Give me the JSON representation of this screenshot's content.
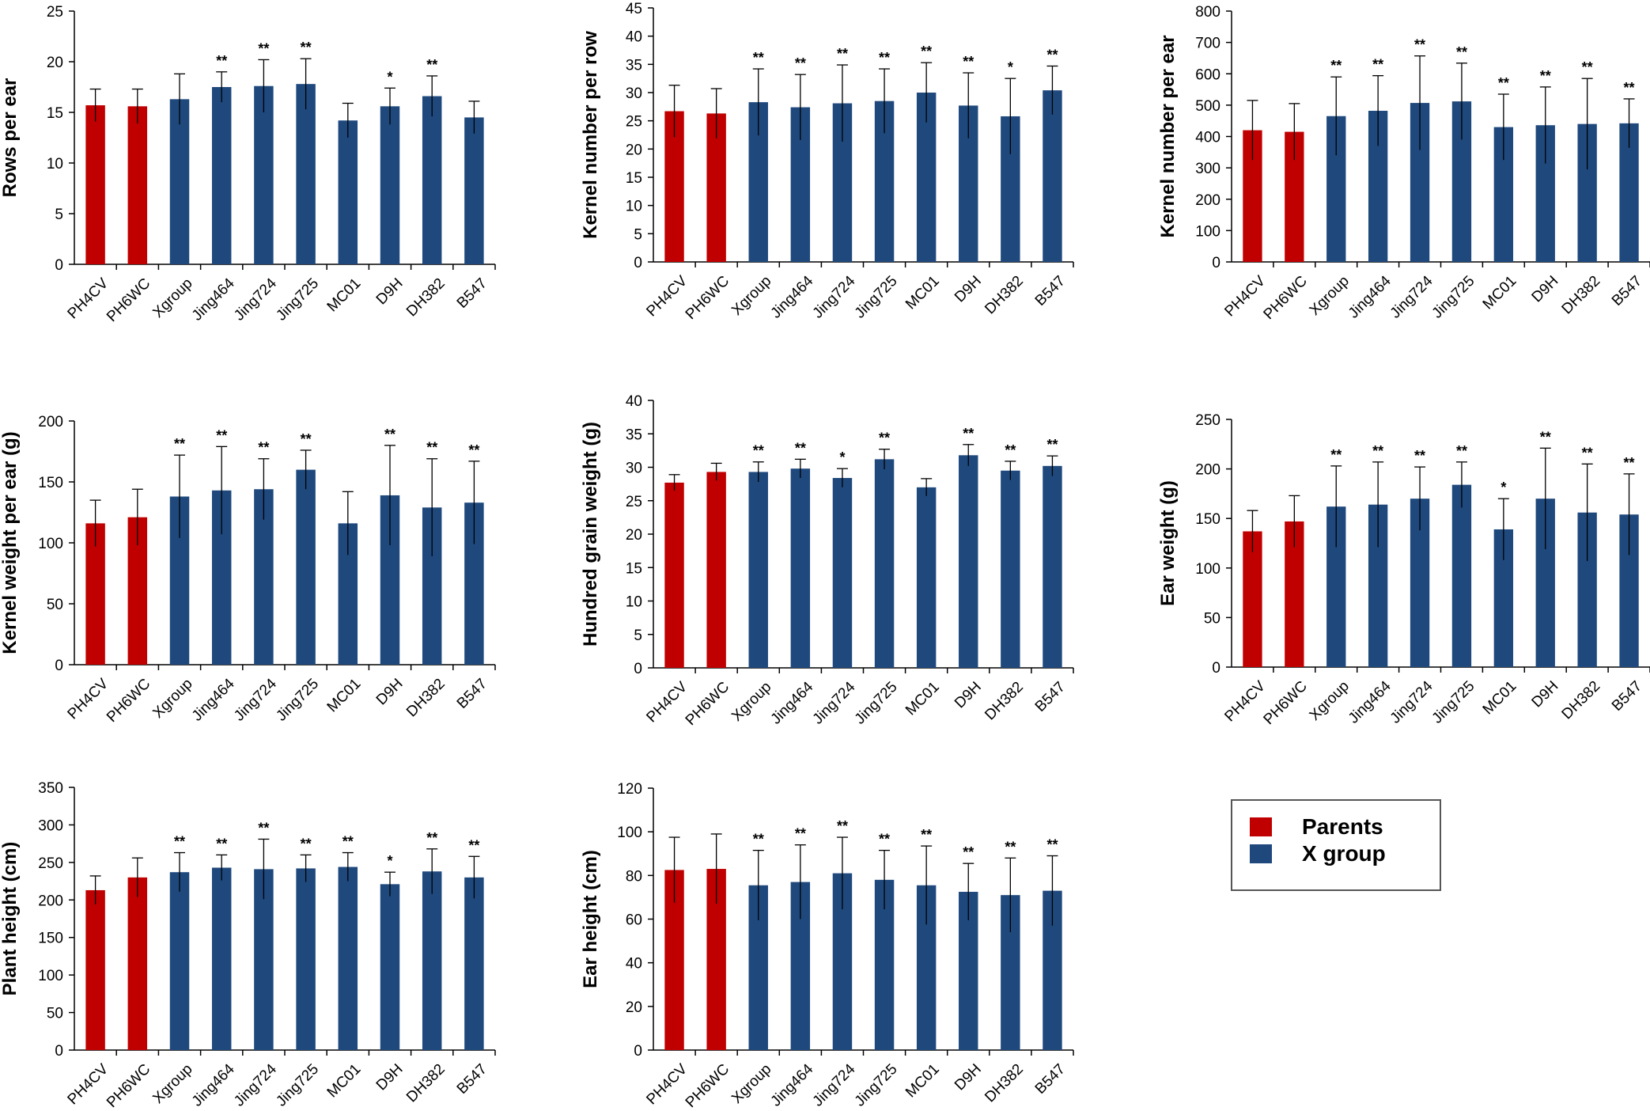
{
  "colors": {
    "parents": "#c00000",
    "xgroup": "#1f497d",
    "axis": "#000000"
  },
  "legend": {
    "items": [
      {
        "label": "Parents",
        "color": "#c00000"
      },
      {
        "label": "X group",
        "color": "#1f497d"
      }
    ]
  },
  "chart_data": [
    {
      "type": "bar",
      "ylabel": "Rows per ear",
      "categories": [
        "PH4CV",
        "PH6WC",
        "Xgroup",
        "Jing464",
        "Jing724",
        "Jing725",
        "MC01",
        "D9H",
        "DH382",
        "B547"
      ],
      "groups": [
        "parent",
        "parent",
        "x",
        "x",
        "x",
        "x",
        "x",
        "x",
        "x",
        "x"
      ],
      "values": [
        15.7,
        15.6,
        16.3,
        17.5,
        17.6,
        17.8,
        14.2,
        15.6,
        16.6,
        14.5
      ],
      "errors": [
        1.6,
        1.7,
        2.5,
        1.5,
        2.6,
        2.5,
        1.7,
        1.8,
        2.0,
        1.6
      ],
      "significance": [
        "",
        "",
        "",
        "**",
        "**",
        "**",
        "",
        "*",
        "**",
        ""
      ],
      "ylim": [
        0,
        25
      ],
      "yticks": [
        0,
        5,
        10,
        15,
        20,
        25
      ]
    },
    {
      "type": "bar",
      "ylabel": "Kernel number per row",
      "categories": [
        "PH4CV",
        "PH6WC",
        "Xgroup",
        "Jing464",
        "Jing724",
        "Jing725",
        "MC01",
        "D9H",
        "DH382",
        "B547"
      ],
      "groups": [
        "parent",
        "parent",
        "x",
        "x",
        "x",
        "x",
        "x",
        "x",
        "x",
        "x"
      ],
      "values": [
        26.7,
        26.3,
        28.3,
        27.4,
        28.1,
        28.5,
        30.0,
        27.7,
        25.8,
        30.4
      ],
      "errors": [
        4.6,
        4.4,
        5.9,
        5.8,
        6.8,
        5.7,
        5.3,
        5.8,
        6.7,
        4.3
      ],
      "significance": [
        "",
        "",
        "**",
        "**",
        "**",
        "**",
        "**",
        "**",
        "*",
        "**"
      ],
      "ylim": [
        0,
        45
      ],
      "yticks": [
        0,
        5,
        10,
        15,
        20,
        25,
        30,
        35,
        40,
        45
      ]
    },
    {
      "type": "bar",
      "ylabel": "Kernel number per ear",
      "categories": [
        "PH4CV",
        "PH6WC",
        "Xgroup",
        "Jing464",
        "Jing724",
        "Jing725",
        "MC01",
        "D9H",
        "DH382",
        "B547"
      ],
      "groups": [
        "parent",
        "parent",
        "x",
        "x",
        "x",
        "x",
        "x",
        "x",
        "x",
        "x"
      ],
      "values": [
        420,
        415,
        465,
        482,
        507,
        512,
        430,
        436,
        440,
        442
      ],
      "errors": [
        95,
        90,
        125,
        112,
        150,
        122,
        105,
        122,
        145,
        78
      ],
      "significance": [
        "",
        "",
        "**",
        "**",
        "**",
        "**",
        "**",
        "**",
        "**",
        "**"
      ],
      "ylim": [
        0,
        800
      ],
      "yticks": [
        0,
        100,
        200,
        300,
        400,
        500,
        600,
        700,
        800
      ]
    },
    {
      "type": "bar",
      "ylabel": "Kernel weight per ear (g)",
      "categories": [
        "PH4CV",
        "PH6WC",
        "Xgroup",
        "Jing464",
        "Jing724",
        "Jing725",
        "MC01",
        "D9H",
        "DH382",
        "B547"
      ],
      "groups": [
        "parent",
        "parent",
        "x",
        "x",
        "x",
        "x",
        "x",
        "x",
        "x",
        "x"
      ],
      "values": [
        116,
        121,
        138,
        143,
        144,
        160,
        116,
        139,
        129,
        133
      ],
      "errors": [
        19,
        23,
        34,
        36,
        25,
        16,
        26,
        41,
        40,
        34
      ],
      "significance": [
        "",
        "",
        "**",
        "**",
        "**",
        "**",
        "",
        "**",
        "**",
        "**"
      ],
      "ylim": [
        0,
        200
      ],
      "yticks": [
        0,
        50,
        100,
        150,
        200
      ]
    },
    {
      "type": "bar",
      "ylabel": "Hundred grain weight (g)",
      "categories": [
        "PH4CV",
        "PH6WC",
        "Xgroup",
        "Jing464",
        "Jing724",
        "Jing725",
        "MC01",
        "D9H",
        "DH382",
        "B547"
      ],
      "groups": [
        "parent",
        "parent",
        "x",
        "x",
        "x",
        "x",
        "x",
        "x",
        "x",
        "x"
      ],
      "values": [
        27.7,
        29.3,
        29.3,
        29.8,
        28.4,
        31.2,
        27.0,
        31.8,
        29.5,
        30.2
      ],
      "errors": [
        1.2,
        1.3,
        1.5,
        1.4,
        1.4,
        1.5,
        1.3,
        1.6,
        1.4,
        1.5
      ],
      "significance": [
        "",
        "",
        "**",
        "**",
        "*",
        "**",
        "",
        "**",
        "**",
        "**"
      ],
      "ylim": [
        0,
        40
      ],
      "yticks": [
        0,
        5,
        10,
        15,
        20,
        25,
        30,
        35,
        40
      ]
    },
    {
      "type": "bar",
      "ylabel": "Ear weight (g)",
      "categories": [
        "PH4CV",
        "PH6WC",
        "Xgroup",
        "Jing464",
        "Jing724",
        "Jing725",
        "MC01",
        "D9H",
        "DH382",
        "B547"
      ],
      "groups": [
        "parent",
        "parent",
        "x",
        "x",
        "x",
        "x",
        "x",
        "x",
        "x",
        "x"
      ],
      "values": [
        137,
        147,
        162,
        164,
        170,
        184,
        139,
        170,
        156,
        154
      ],
      "errors": [
        21,
        26,
        41,
        43,
        32,
        23,
        31,
        51,
        49,
        41
      ],
      "significance": [
        "",
        "",
        "**",
        "**",
        "**",
        "**",
        "*",
        "**",
        "**",
        "**"
      ],
      "ylim": [
        0,
        250
      ],
      "yticks": [
        0,
        50,
        100,
        150,
        200,
        250
      ]
    },
    {
      "type": "bar",
      "ylabel": "Plant height (cm)",
      "categories": [
        "PH4CV",
        "PH6WC",
        "Xgroup",
        "Jing464",
        "Jing724",
        "Jing725",
        "MC01",
        "D9H",
        "DH382",
        "B547"
      ],
      "groups": [
        "parent",
        "parent",
        "x",
        "x",
        "x",
        "x",
        "x",
        "x",
        "x",
        "x"
      ],
      "values": [
        213,
        230,
        237,
        243,
        241,
        242,
        244,
        221,
        238,
        230
      ],
      "errors": [
        19,
        26,
        26,
        17,
        40,
        18,
        19,
        16,
        30,
        28
      ],
      "significance": [
        "",
        "",
        "**",
        "**",
        "**",
        "**",
        "**",
        "*",
        "**",
        "**"
      ],
      "ylim": [
        0,
        350
      ],
      "yticks": [
        0,
        50,
        100,
        150,
        200,
        250,
        300,
        350
      ]
    },
    {
      "type": "bar",
      "ylabel": "Ear height (cm)",
      "categories": [
        "PH4CV",
        "PH6WC",
        "Xgroup",
        "Jing464",
        "Jing724",
        "Jing725",
        "MC01",
        "D9H",
        "DH382",
        "B547"
      ],
      "groups": [
        "parent",
        "parent",
        "x",
        "x",
        "x",
        "x",
        "x",
        "x",
        "x",
        "x"
      ],
      "values": [
        82.5,
        83,
        75.5,
        77,
        81,
        78,
        75.5,
        72.5,
        71,
        73
      ],
      "errors": [
        15,
        16,
        16,
        17,
        16.5,
        13.5,
        18,
        13,
        17,
        16
      ],
      "significance": [
        "",
        "",
        "**",
        "**",
        "**",
        "**",
        "**",
        "**",
        "**",
        "**"
      ],
      "ylim": [
        0,
        120
      ],
      "yticks": [
        0,
        20,
        40,
        60,
        80,
        100,
        120
      ]
    }
  ]
}
